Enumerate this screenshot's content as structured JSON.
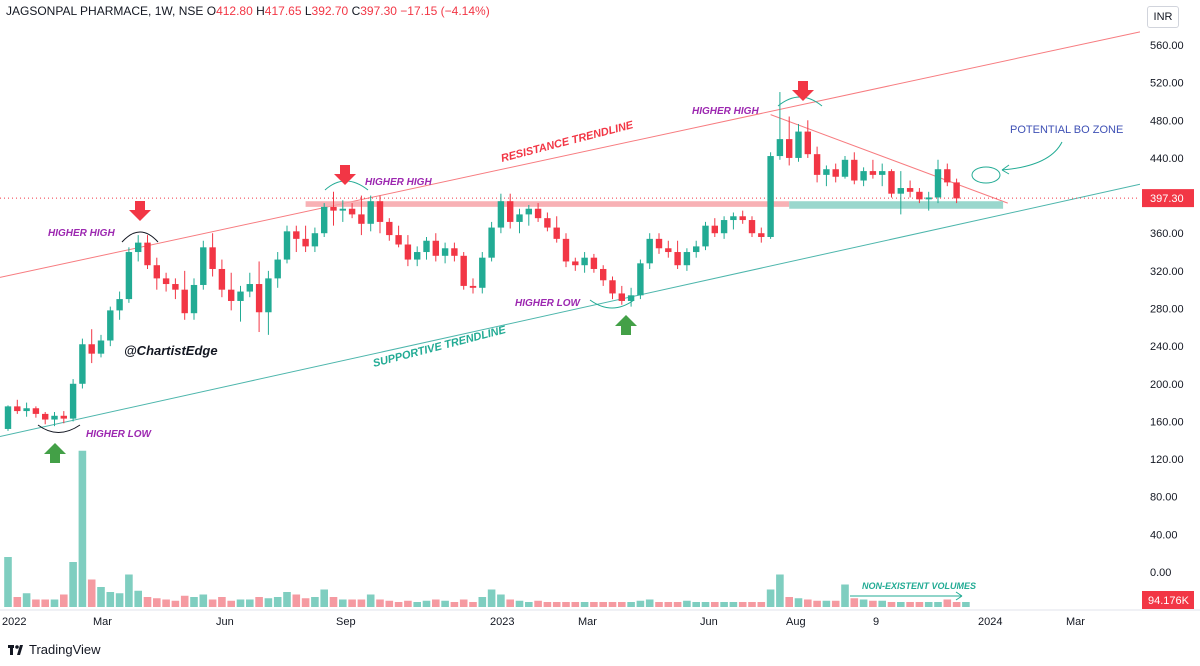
{
  "header": {
    "symbol": "JAGSONPAL PHARMACE, 1W, NSE",
    "o_label": "O",
    "o": "412.80",
    "h_label": "H",
    "h": "417.65",
    "l_label": "L",
    "l": "392.70",
    "c_label": "C",
    "c": "397.30",
    "change": "−17.15 (−4.14%)"
  },
  "currency": "INR",
  "footer": {
    "brand": "TradingView"
  },
  "colors": {
    "up": "#22ab94",
    "down": "#f23645",
    "volume_up": "#7fcec0",
    "volume_down": "#f59aa1",
    "resistance": "#f77c80",
    "support": "#4db6ac",
    "annotation": "#9c27b0"
  },
  "chart_data": {
    "type": "candlestick",
    "y_axis": {
      "ticks": [
        "560.00",
        "520.00",
        "480.00",
        "440.00",
        "400.00",
        "360.00",
        "320.00",
        "280.00",
        "240.00",
        "200.00",
        "160.00",
        "120.00",
        "80.00",
        "40.00",
        "0.00"
      ],
      "last_price": "397.30",
      "last_volume": "94.176K"
    },
    "x_axis": {
      "ticks": [
        "2022",
        "Mar",
        "Jun",
        "Sep",
        "2023",
        "Mar",
        "Jun",
        "Aug",
        "9",
        "2024",
        "Mar"
      ]
    },
    "candles": [
      [
        152,
        177,
        150,
        176
      ],
      [
        176,
        183,
        168,
        171
      ],
      [
        171,
        180,
        165,
        174
      ],
      [
        174,
        176,
        164,
        168
      ],
      [
        168,
        170,
        157,
        162
      ],
      [
        162,
        170,
        155,
        166
      ],
      [
        166,
        171,
        158,
        163
      ],
      [
        163,
        205,
        160,
        200
      ],
      [
        200,
        248,
        195,
        242
      ],
      [
        242,
        258,
        222,
        232
      ],
      [
        232,
        252,
        228,
        246
      ],
      [
        246,
        282,
        240,
        278
      ],
      [
        278,
        298,
        268,
        290
      ],
      [
        290,
        345,
        286,
        340
      ],
      [
        340,
        358,
        330,
        350
      ],
      [
        350,
        358,
        322,
        326
      ],
      [
        326,
        334,
        300,
        312
      ],
      [
        312,
        318,
        298,
        306
      ],
      [
        306,
        312,
        290,
        300
      ],
      [
        300,
        320,
        268,
        275
      ],
      [
        275,
        312,
        268,
        305
      ],
      [
        305,
        352,
        300,
        345
      ],
      [
        345,
        360,
        314,
        322
      ],
      [
        322,
        332,
        292,
        300
      ],
      [
        300,
        318,
        278,
        288
      ],
      [
        288,
        304,
        266,
        298
      ],
      [
        298,
        318,
        292,
        306
      ],
      [
        306,
        330,
        255,
        276
      ],
      [
        276,
        320,
        252,
        312
      ],
      [
        312,
        340,
        302,
        332
      ],
      [
        332,
        368,
        328,
        362
      ],
      [
        362,
        368,
        340,
        354
      ],
      [
        354,
        368,
        340,
        346
      ],
      [
        346,
        366,
        340,
        360
      ],
      [
        360,
        392,
        356,
        388
      ],
      [
        388,
        404,
        368,
        384
      ],
      [
        384,
        395,
        372,
        386
      ],
      [
        386,
        392,
        376,
        380
      ],
      [
        380,
        400,
        358,
        370
      ],
      [
        370,
        400,
        362,
        394
      ],
      [
        394,
        400,
        360,
        372
      ],
      [
        372,
        376,
        352,
        358
      ],
      [
        358,
        368,
        345,
        348
      ],
      [
        348,
        358,
        325,
        332
      ],
      [
        332,
        346,
        325,
        340
      ],
      [
        340,
        356,
        332,
        352
      ],
      [
        352,
        360,
        330,
        336
      ],
      [
        336,
        350,
        328,
        344
      ],
      [
        344,
        350,
        330,
        336
      ],
      [
        336,
        340,
        300,
        304
      ],
      [
        304,
        312,
        296,
        302
      ],
      [
        302,
        340,
        296,
        334
      ],
      [
        334,
        372,
        330,
        366
      ],
      [
        366,
        402,
        360,
        394
      ],
      [
        394,
        402,
        365,
        372
      ],
      [
        372,
        386,
        360,
        380
      ],
      [
        380,
        390,
        368,
        386
      ],
      [
        386,
        392,
        372,
        376
      ],
      [
        376,
        382,
        362,
        366
      ],
      [
        366,
        378,
        350,
        354
      ],
      [
        354,
        360,
        324,
        330
      ],
      [
        330,
        334,
        320,
        326
      ],
      [
        326,
        340,
        318,
        334
      ],
      [
        334,
        338,
        318,
        322
      ],
      [
        322,
        326,
        304,
        310
      ],
      [
        310,
        314,
        290,
        296
      ],
      [
        296,
        304,
        284,
        288
      ],
      [
        288,
        302,
        282,
        294
      ],
      [
        294,
        332,
        290,
        328
      ],
      [
        328,
        360,
        322,
        354
      ],
      [
        354,
        360,
        338,
        344
      ],
      [
        344,
        352,
        334,
        340
      ],
      [
        340,
        352,
        322,
        326
      ],
      [
        326,
        344,
        320,
        340
      ],
      [
        340,
        352,
        334,
        346
      ],
      [
        346,
        372,
        342,
        368
      ],
      [
        368,
        376,
        356,
        360
      ],
      [
        360,
        378,
        354,
        374
      ],
      [
        374,
        382,
        364,
        378
      ],
      [
        378,
        384,
        370,
        374
      ],
      [
        374,
        378,
        356,
        360
      ],
      [
        360,
        366,
        350,
        356
      ],
      [
        356,
        446,
        354,
        442
      ],
      [
        442,
        510,
        438,
        460
      ],
      [
        460,
        484,
        432,
        440
      ],
      [
        440,
        476,
        436,
        468
      ],
      [
        468,
        480,
        440,
        444
      ],
      [
        444,
        452,
        414,
        422
      ],
      [
        422,
        432,
        410,
        428
      ],
      [
        428,
        434,
        414,
        420
      ],
      [
        420,
        442,
        418,
        438
      ],
      [
        438,
        446,
        412,
        416
      ],
      [
        416,
        430,
        410,
        426
      ],
      [
        426,
        438,
        418,
        422
      ],
      [
        422,
        434,
        410,
        426
      ],
      [
        426,
        428,
        398,
        402
      ],
      [
        402,
        426,
        380,
        408
      ],
      [
        408,
        416,
        398,
        404
      ],
      [
        404,
        408,
        392,
        396
      ],
      [
        396,
        404,
        384,
        398
      ],
      [
        398,
        438,
        392,
        428
      ],
      [
        428,
        434,
        410,
        414
      ],
      [
        414,
        418,
        392,
        397
      ]
    ],
    "volume": [
      40,
      8,
      11,
      6,
      6,
      6,
      10,
      36,
      125,
      22,
      16,
      12,
      11,
      26,
      13,
      8,
      7,
      6,
      5,
      9,
      8,
      10,
      6,
      8,
      5,
      6,
      6,
      8,
      7,
      8,
      12,
      10,
      7,
      8,
      14,
      8,
      6,
      6,
      6,
      10,
      6,
      5,
      4,
      5,
      4,
      5,
      6,
      5,
      4,
      6,
      4,
      8,
      14,
      10,
      6,
      5,
      4,
      5,
      4,
      4,
      4,
      4,
      4,
      4,
      4,
      4,
      4,
      4,
      5,
      6,
      4,
      4,
      4,
      5,
      4,
      4,
      4,
      4,
      4,
      4,
      4,
      4,
      14,
      26,
      8,
      7,
      6,
      5,
      5,
      5,
      18,
      7,
      6,
      5,
      5,
      4,
      4,
      4,
      4,
      4,
      4,
      6,
      4,
      4
    ],
    "trendlines": [
      {
        "label": "RESISTANCE TRENDLINE",
        "from": [
          "2022-01",
          318
        ],
        "to": [
          "2024-03",
          585
        ]
      },
      {
        "label": "SUPPORTIVE TRENDLINE",
        "from": [
          "2022-01",
          143
        ],
        "to": [
          "2024-04",
          418
        ]
      }
    ],
    "annotations": [
      {
        "text": "HIGHER HIGH",
        "near": "Mar 2022"
      },
      {
        "text": "HIGHER HIGH",
        "near": "Sep 2022"
      },
      {
        "text": "HIGHER HIGH",
        "near": "Jul 2023"
      },
      {
        "text": "HIGHER LOW",
        "near": "Jan 2022"
      },
      {
        "text": "HIGHER LOW",
        "near": "Mar 2023"
      },
      {
        "text": "@ChartistEdge",
        "near": "Apr 2022"
      },
      {
        "text": "POTENTIAL BO ZONE",
        "near": "Oct 2023"
      },
      {
        "text": "NON-EXISTENT VOLUMES",
        "near": "Oct 2023"
      }
    ]
  }
}
